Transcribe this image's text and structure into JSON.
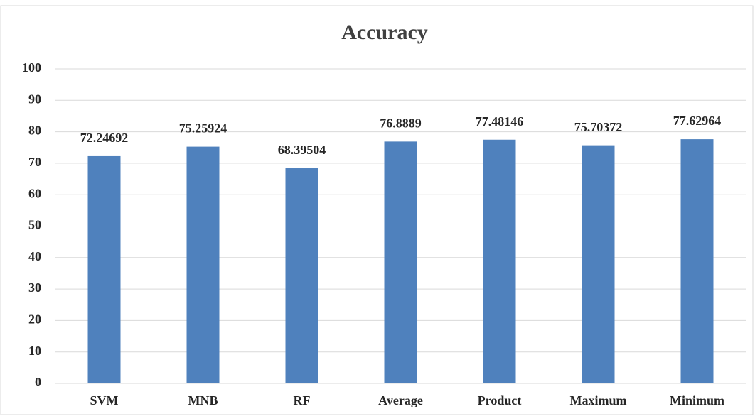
{
  "chart_data": {
    "type": "bar",
    "title": "Accuracy",
    "categories": [
      "SVM",
      "MNB",
      "RF",
      "Average",
      "Product",
      "Maximum",
      "Minimum"
    ],
    "values": [
      72.24692,
      75.25924,
      68.39504,
      76.8889,
      77.48146,
      75.70372,
      77.62964
    ],
    "color": "#4f81bd",
    "ylim": [
      0,
      100
    ],
    "yticks": [
      0,
      10,
      20,
      30,
      40,
      50,
      60,
      70,
      80,
      90,
      100
    ],
    "grid": true
  }
}
